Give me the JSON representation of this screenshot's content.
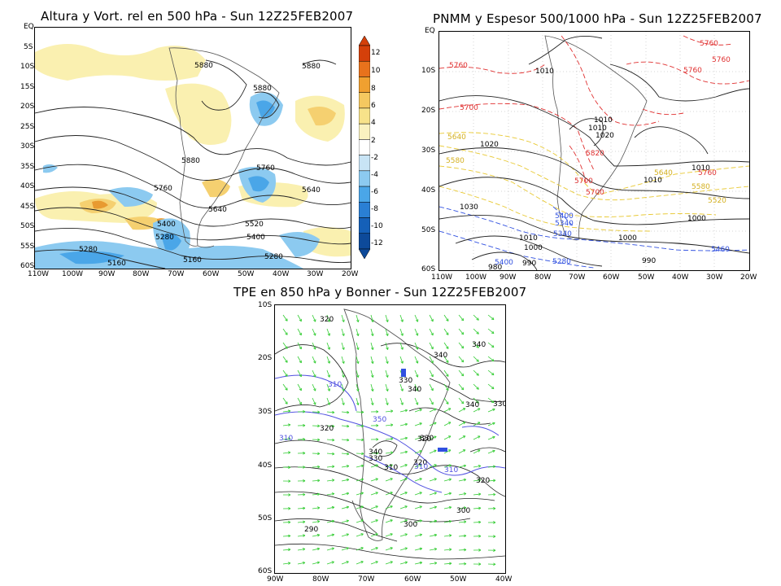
{
  "panels": {
    "top_left": {
      "title": "Altura y Vort. rel en 500 hPa - Sun 12Z25FEB2007",
      "y_ticks": [
        "EQ",
        "5S",
        "10S",
        "15S",
        "20S",
        "25S",
        "30S",
        "35S",
        "40S",
        "45S",
        "50S",
        "55S",
        "60S"
      ],
      "x_ticks": [
        "110W",
        "100W",
        "90W",
        "80W",
        "70W",
        "60W",
        "50W",
        "40W",
        "30W",
        "20W"
      ],
      "contour_labels": [
        "5880",
        "5880",
        "5880",
        "5880",
        "5760",
        "5760",
        "5640",
        "5640",
        "5520",
        "5400",
        "5400",
        "5280",
        "5280",
        "5280",
        "5160",
        "5160"
      ],
      "colorbar": {
        "labels": [
          "12",
          "10",
          "8",
          "6",
          "4",
          "2",
          "-2",
          "-4",
          "-6",
          "-8",
          "-10",
          "-12"
        ],
        "colors": [
          "#d4400a",
          "#e8721c",
          "#f0a030",
          "#f5c860",
          "#f7e28a",
          "#faf2c0",
          "#ffffff",
          "#c8e4f5",
          "#8ccaf0",
          "#4aa6e8",
          "#2a7fd4",
          "#1560b8",
          "#0d4a9a"
        ]
      }
    },
    "top_right": {
      "title": "PNMM y Espesor 500/1000 hPa - Sun 12Z25FEB2007",
      "y_ticks": [
        "EQ",
        "10S",
        "20S",
        "30S",
        "40S",
        "50S",
        "60S"
      ],
      "x_ticks": [
        "110W",
        "100W",
        "90W",
        "80W",
        "70W",
        "60W",
        "50W",
        "40W",
        "30W",
        "20W"
      ],
      "pressure_labels": [
        "1010",
        "1010",
        "1010",
        "1020",
        "1020",
        "1010",
        "1010",
        "1000",
        "1000",
        "1030",
        "1010",
        "1000",
        "990",
        "990",
        "980"
      ],
      "thickness_labels": [
        "5760",
        "5760",
        "5760",
        "5760",
        "5700",
        "5700",
        "5820",
        "5760",
        "5700",
        "5640",
        "5640",
        "5580",
        "5580",
        "5520",
        "5460",
        "5400",
        "5400",
        "5340",
        "5280",
        "5340"
      ]
    },
    "bottom": {
      "title": "TPE en 850 hPa y Bonner - Sun 12Z25FEB2007",
      "y_ticks": [
        "10S",
        "20S",
        "30S",
        "40S",
        "50S",
        "60S"
      ],
      "x_ticks": [
        "90W",
        "80W",
        "70W",
        "60W",
        "50W",
        "40W"
      ],
      "contour_labels": [
        "320",
        "340",
        "340",
        "340",
        "330",
        "340",
        "330",
        "320",
        "320",
        "330",
        "340",
        "330",
        "320",
        "320",
        "310",
        "300",
        "300",
        "290"
      ],
      "blue_labels": [
        "310",
        "310",
        "350",
        "310",
        "310"
      ]
    }
  },
  "colors": {
    "land_outline": "#555555",
    "contour": "#000000",
    "pressure": "#222222",
    "thickness_red": "#e03030",
    "thickness_yellow": "#e8c830",
    "thickness_blue": "#3050e0",
    "wind_arrow": "#33cc33",
    "thetae_blue": "#5050e0"
  }
}
